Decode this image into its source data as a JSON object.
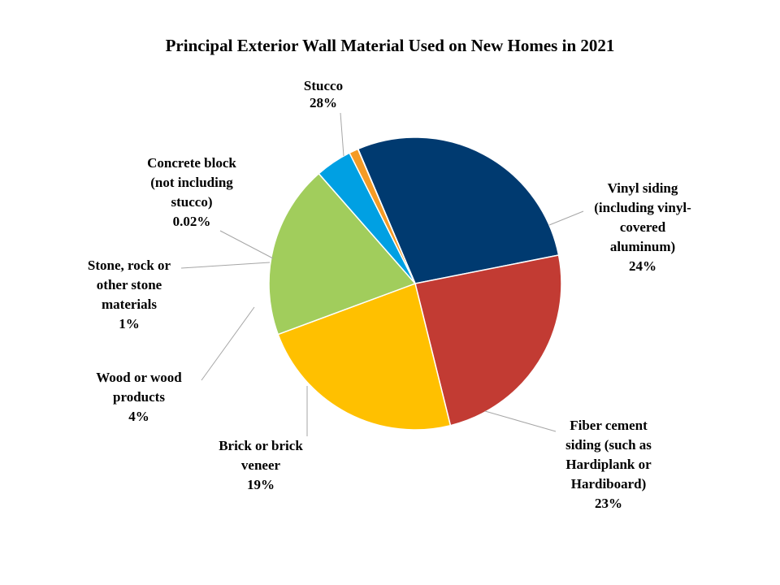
{
  "chart_data": {
    "type": "pie",
    "title": "Principal Exterior Wall Material Used on New Homes in 2021",
    "slices": [
      {
        "label_lines": [
          "Stucco",
          "28%"
        ],
        "value": 28,
        "color": "#003a70"
      },
      {
        "label_lines": [
          "Vinyl siding",
          "(including vinyl-",
          "covered",
          "aluminum)",
          "24%"
        ],
        "value": 24,
        "color": "#c23b33"
      },
      {
        "label_lines": [
          "Fiber cement",
          "siding (such as",
          "Hardiplank or",
          "Hardiboard)",
          "23%"
        ],
        "value": 23,
        "color": "#ffc000"
      },
      {
        "label_lines": [
          "Brick or brick",
          "veneer",
          "19%"
        ],
        "value": 19,
        "color": "#a1cd5c"
      },
      {
        "label_lines": [
          "Wood or wood",
          "products",
          "4%"
        ],
        "value": 4,
        "color": "#00a0e3"
      },
      {
        "label_lines": [
          "Stone, rock or",
          "other stone",
          "materials",
          "1%"
        ],
        "value": 1,
        "color": "#f59b25"
      },
      {
        "label_lines": [
          "Concrete block",
          "(not including",
          "stucco)",
          "0.02%"
        ],
        "value": 0.02,
        "color": "#7f7f7f"
      }
    ],
    "legend": "none"
  }
}
